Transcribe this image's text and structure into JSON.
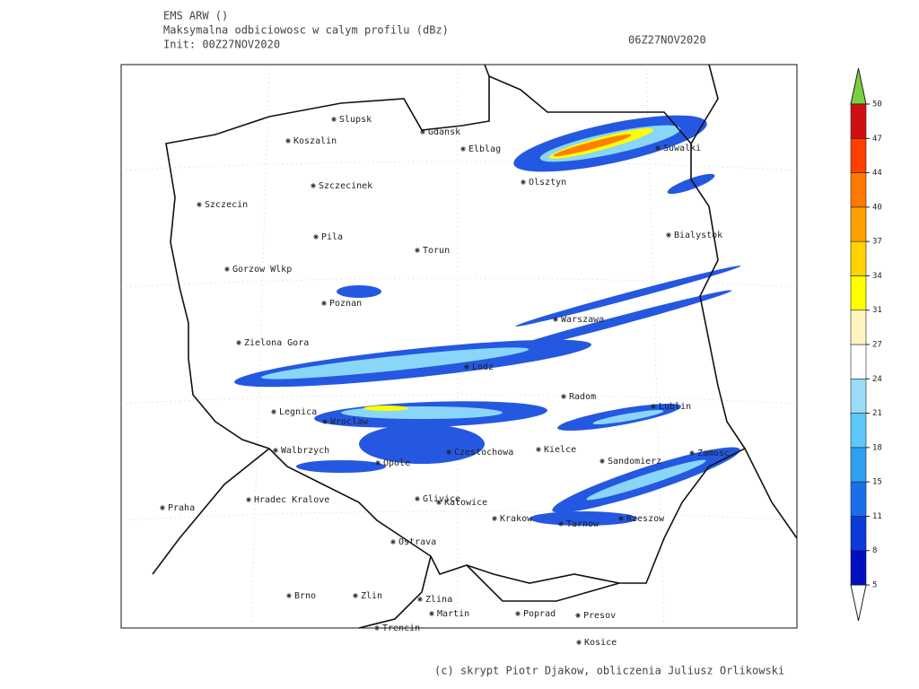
{
  "header": {
    "model": "EMS ARW ()",
    "title": "Maksymalna odbiciowosc w calym profilu (dBz)",
    "init": "Init: 00Z27NOV2020",
    "valid": "06Z27NOV2020"
  },
  "cities": [
    "Slupsk",
    "Koszalin",
    "Gdansk",
    "Elblag",
    "Suwalki",
    "Olsztyn",
    "Szczecinek",
    "Szczecin",
    "Bialystok",
    "Pila",
    "Torun",
    "Gorzow Wlkp",
    "Poznan",
    "Warszawa",
    "Zielona Gora",
    "Lodz",
    "Radom",
    "Legnica",
    "Lublin",
    "Wroclaw",
    "Walbrzych",
    "Czestochowa",
    "Kielce",
    "Opole",
    "Sandomierz",
    "Zamosc",
    "Praha",
    "Hradec Kralove",
    "Glivice",
    "Katowice",
    "Krakow",
    "Tarnow",
    "Rzeszow",
    "Ostrava",
    "Brno",
    "Zlin",
    "Zlina",
    "Martin",
    "Poprad",
    "Presov",
    "Trencin",
    "Kosice"
  ],
  "colorbar": {
    "levels": [
      5,
      8,
      11,
      15,
      18,
      21,
      24,
      27,
      31,
      34,
      37,
      40,
      44,
      47,
      50
    ],
    "colors": [
      "#0010c0",
      "#0a3ad8",
      "#1a6ee8",
      "#2ea0f0",
      "#5cc8f8",
      "#9adcf8",
      "#ffffff",
      "#fff3c0",
      "#ffff00",
      "#ffd200",
      "#ffa000",
      "#ff7800",
      "#ff4000",
      "#d01010"
    ]
  },
  "footer": "(c) skrypt Piotr Djakow, obliczenia Juliusz Orlikowski"
}
